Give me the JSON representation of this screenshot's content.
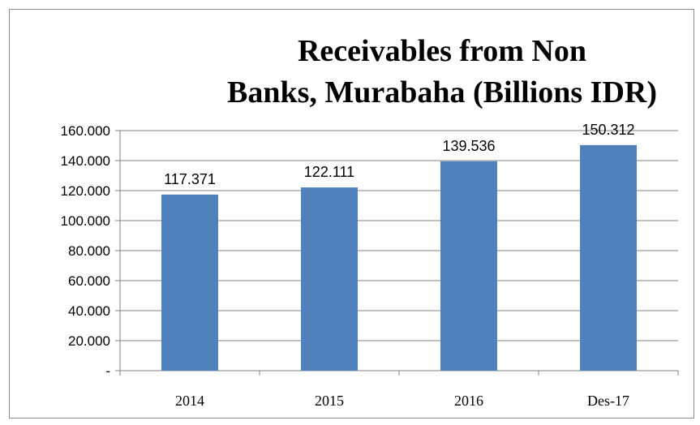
{
  "chart_data": {
    "type": "bar",
    "title_lines": [
      "Receivables from Non",
      "Banks, Murabaha (Billions IDR)"
    ],
    "categories": [
      "2014",
      "2015",
      "2016",
      "Des-17"
    ],
    "values": [
      117.371,
      122.111,
      139.536,
      150.312
    ],
    "data_labels": [
      "117.371",
      "122.111",
      "139.536",
      "150.312"
    ],
    "y_tick_values": [
      0,
      20,
      40,
      60,
      80,
      100,
      120,
      140,
      160
    ],
    "y_tick_labels": [
      "-",
      "20.000",
      "40.000",
      "60.000",
      "80.000",
      "100.000",
      "120.000",
      "140.000",
      "160.000"
    ],
    "ylim": [
      0,
      160
    ],
    "grid": true,
    "legend": "none",
    "bar_color": "#4f81bd",
    "grid_color": "#808080"
  }
}
